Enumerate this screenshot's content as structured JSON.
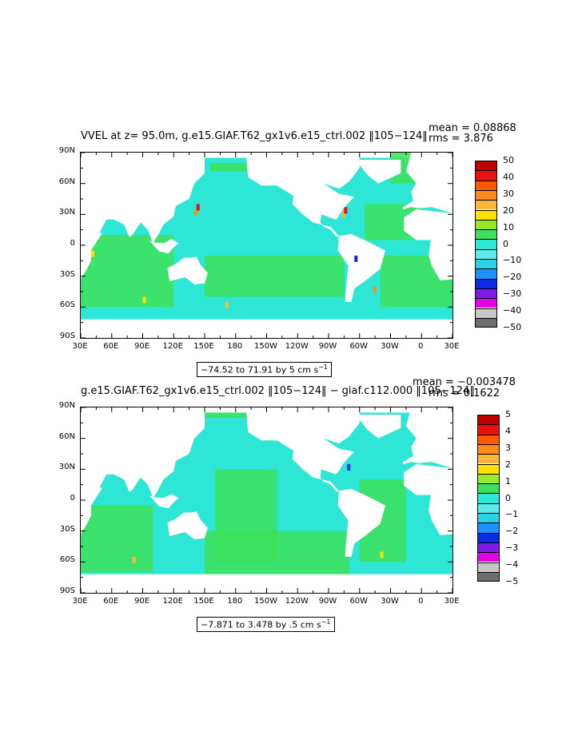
{
  "colors": {
    "ocean_main": "#2ee6d6",
    "ocean_green": "#3de05a",
    "land": "#ffffff",
    "frame": "#000000"
  },
  "panels": [
    {
      "title": "VVEL at z=  95.0m, g.e15.GIAF.T62_gx1v6.e15_ctrl.002 ‖105−124‖",
      "mean_text": "mean = 0.08868",
      "rms_text": "rms = 3.876",
      "range_text": "−74.52 to 71.91 by 5 cm s",
      "range_sup": "−1",
      "lat_labels": [
        "90N",
        "60N",
        "30N",
        "0",
        "30S",
        "60S",
        "90S"
      ],
      "lon_labels": [
        "30E",
        "60E",
        "90E",
        "120E",
        "150E",
        "180",
        "150W",
        "120W",
        "90W",
        "60W",
        "30W",
        "0",
        "30E"
      ],
      "colorbar_labels": [
        "50",
        "40",
        "30",
        "20",
        "10",
        "0",
        "−10",
        "−20",
        "−30",
        "−40",
        "−50"
      ],
      "colorbar_colors": [
        "#c00000",
        "#e81010",
        "#ff5a00",
        "#ff8c1a",
        "#ffb43c",
        "#ffe000",
        "#9be82a",
        "#3de05a",
        "#2ee6d6",
        "#5aeaea",
        "#2bd2e8",
        "#1e90ff",
        "#0a2ae6",
        "#7d1ae6",
        "#e600e6",
        "#c8c8c8",
        "#6e6e6e"
      ]
    },
    {
      "title": "g.e15.GIAF.T62_gx1v6.e15_ctrl.002 ‖105−124‖ − giaf.c112.000 ‖105−124‖",
      "mean_text": "mean = −0.003478",
      "rms_text": "rms = 0.1622",
      "range_text": "−7.871 to 3.478 by .5 cm s",
      "range_sup": "−1",
      "lat_labels": [
        "90N",
        "60N",
        "30N",
        "0",
        "30S",
        "60S",
        "90S"
      ],
      "lon_labels": [
        "30E",
        "60E",
        "90E",
        "120E",
        "150E",
        "180",
        "150W",
        "120W",
        "90W",
        "60W",
        "30W",
        "0",
        "30E"
      ],
      "colorbar_labels": [
        "5",
        "4",
        "3",
        "2",
        "1",
        "0",
        "−1",
        "−2",
        "−3",
        "−4",
        "−5"
      ],
      "colorbar_colors": [
        "#c00000",
        "#e81010",
        "#ff5a00",
        "#ff8c1a",
        "#ffb43c",
        "#ffe000",
        "#9be82a",
        "#3de05a",
        "#2ee6d6",
        "#5aeaea",
        "#2bd2e8",
        "#1e90ff",
        "#0a2ae6",
        "#7d1ae6",
        "#e600e6",
        "#c8c8c8",
        "#6e6e6e"
      ]
    }
  ]
}
